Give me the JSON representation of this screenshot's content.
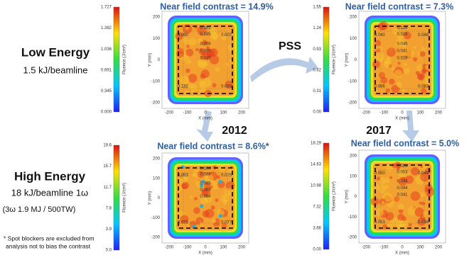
{
  "row_labels": [
    {
      "title": "Low Energy",
      "lines": [
        "1.5 kJ/beamline"
      ]
    },
    {
      "title": "High Energy",
      "lines": [
        "18 kJ/beamline 1ω",
        "(3ω 1.9 MJ / 500TW)"
      ]
    }
  ],
  "footnote": [
    "* Spot blockers are excluded from",
    "analysis not to bias the contrast"
  ],
  "transition": "PSS",
  "years": [
    "2012",
    "2017"
  ],
  "panels": [
    {
      "title": "Near field contrast = 14.9%",
      "colorbar_label": "Fluence (J/cm²)",
      "colorbar_ticks": [
        "1.727",
        "1.382",
        "1.036",
        "0.691",
        "0.345",
        "0.000"
      ],
      "x_label": "X (mm)",
      "y_label": "Y (mm)",
      "x_ticks": [
        "-200",
        "-100",
        "0",
        "100",
        "200"
      ],
      "y_ticks": [
        "200",
        "100",
        "0",
        "-100",
        "-200"
      ],
      "point_labels": [
        "0.191",
        "0.185",
        "0.080",
        "0.007",
        "0.059",
        "0.089",
        "0.049",
        "0.132",
        "0.093"
      ]
    },
    {
      "title": "Near field contrast = 7.3%",
      "colorbar_label": "Fluence (J/cm²)",
      "colorbar_ticks": [
        "1.55",
        "1.24",
        "0.93",
        "0.62",
        "0.31",
        "0.00"
      ],
      "x_label": "X (mm)",
      "y_label": "Y (mm)",
      "x_ticks": [
        "-200",
        "-100",
        "0",
        "100",
        "200"
      ],
      "y_ticks": [
        "200",
        "100",
        "0",
        "-100",
        "-200"
      ],
      "point_labels": [
        "0.116",
        "0.029",
        "0.040",
        "0.048",
        "0.046",
        "0.041",
        "0.028",
        "0.086",
        "0.083"
      ]
    },
    {
      "title": "Near field contrast = 8.6%*",
      "colorbar_label": "Fluence (J/cm²)",
      "colorbar_ticks": [
        "19.6",
        "15.7",
        "11.7",
        "7.8",
        "3.9",
        "0.0"
      ],
      "x_label": "X (mm)",
      "y_label": "Y (mm)",
      "x_ticks": [
        "-200",
        "-100",
        "0",
        "100",
        "200"
      ],
      "y_ticks": [
        "200",
        "100",
        "0",
        "-100",
        "-200"
      ],
      "point_labels": [
        "0.100",
        "0.088",
        "0.053",
        "0.075",
        "0.063",
        "0.063",
        "0.064",
        "0.075",
        "0.077"
      ]
    },
    {
      "title": "Near field contrast = 5.0%",
      "colorbar_label": "Fluence (J/cm²)",
      "colorbar_ticks": [
        "18.29",
        "14.63",
        "10.98",
        "7.32",
        "3.66",
        "0.00"
      ],
      "x_label": "X (mm)",
      "y_label": "Y (mm)",
      "x_ticks": [
        "-200",
        "-100",
        "0",
        "100",
        "200"
      ],
      "y_ticks": [
        "200",
        "100",
        "0",
        "-100",
        "-200"
      ],
      "point_labels": [
        "0.024",
        "0.053",
        "0.050",
        "0.049",
        "0.044",
        "0.044",
        "0.041",
        "0.053",
        "0.056"
      ]
    }
  ]
}
